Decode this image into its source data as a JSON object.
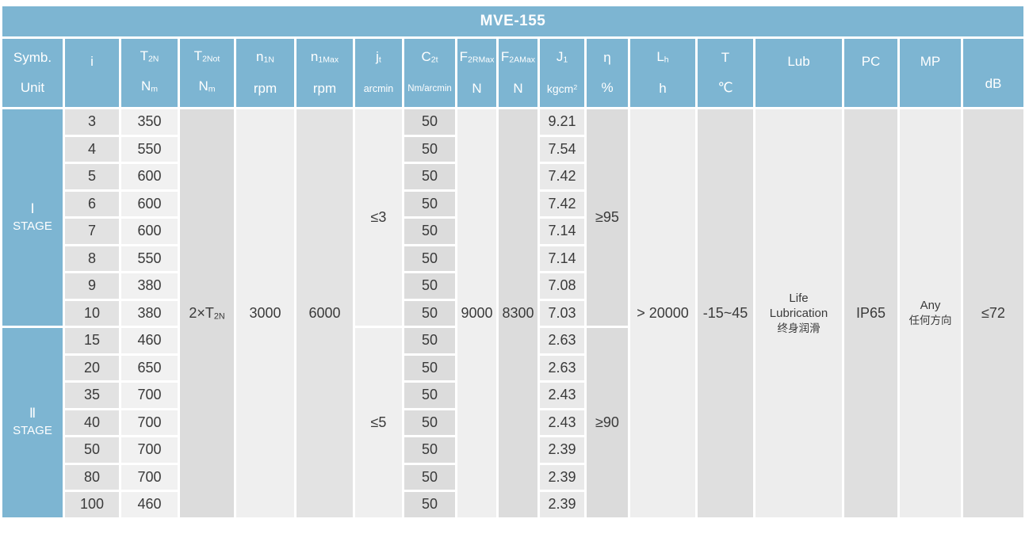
{
  "title": "MVE-155",
  "colors": {
    "header_blue": "#7db5d2",
    "text_dark": "#3a3a3a",
    "grid_line": "#ffffff",
    "columns": {
      "stage": "#7db5d2",
      "i": "#e2e2e2",
      "t2n": "#f1f1f1",
      "t2not": "#dcdcdc",
      "n1n": "#efefef",
      "n1max": "#e3e3e3",
      "jt": "#efefef",
      "c2t": "#dcdcdc",
      "f2rmax": "#efefef",
      "f2amax": "#dcdcdc",
      "j1": "#e9e9e9",
      "eta": "#dbdbdb",
      "lh": "#eeeeee",
      "t": "#dfdfdf",
      "lub": "#ededed",
      "pc": "#dfdfdf",
      "mp": "#ededed",
      "db": "#dfdfdf"
    }
  },
  "header": {
    "corner_top": "Symb.",
    "corner_bottom": "Unit",
    "columns": [
      {
        "key": "i",
        "sym": "i",
        "sym_sub": "",
        "unit": "",
        "unit_sub": "",
        "unit_sup": ""
      },
      {
        "key": "t2n",
        "sym": "T",
        "sym_sub": "2N",
        "unit": "N",
        "unit_sub": "m",
        "unit_sup": ""
      },
      {
        "key": "t2not",
        "sym": "T",
        "sym_sub": "2Not",
        "unit": "N",
        "unit_sub": "m",
        "unit_sup": ""
      },
      {
        "key": "n1n",
        "sym": "n",
        "sym_sub": "1N",
        "unit": "rpm",
        "unit_sub": "",
        "unit_sup": ""
      },
      {
        "key": "n1max",
        "sym": "n",
        "sym_sub": "1Max",
        "unit": "rpm",
        "unit_sub": "",
        "unit_sup": ""
      },
      {
        "key": "jt",
        "sym": "j",
        "sym_sub": "t",
        "unit": "arcmin",
        "unit_sub": "",
        "unit_sup": ""
      },
      {
        "key": "c2t",
        "sym": "C",
        "sym_sub": "2t",
        "unit": "Nm/arcmin",
        "unit_sub": "",
        "unit_sup": ""
      },
      {
        "key": "f2rmax",
        "sym": "F",
        "sym_sub": "2RMax",
        "unit": "N",
        "unit_sub": "",
        "unit_sup": ""
      },
      {
        "key": "f2amax",
        "sym": "F",
        "sym_sub": "2AMax",
        "unit": "N",
        "unit_sub": "",
        "unit_sup": ""
      },
      {
        "key": "j1",
        "sym": "J",
        "sym_sub": "1",
        "unit": "kgcm",
        "unit_sub": "",
        "unit_sup": "2"
      },
      {
        "key": "eta",
        "sym": "η",
        "sym_sub": "",
        "unit": "%",
        "unit_sub": "",
        "unit_sup": ""
      },
      {
        "key": "lh",
        "sym": "L",
        "sym_sub": "h",
        "unit": "h",
        "unit_sub": "",
        "unit_sup": ""
      },
      {
        "key": "t",
        "sym": "T",
        "sym_sub": "",
        "unit": "℃",
        "unit_sub": "",
        "unit_sup": ""
      },
      {
        "key": "lub",
        "sym": "Lub",
        "sym_sub": "",
        "unit": "",
        "unit_sub": "",
        "unit_sup": ""
      },
      {
        "key": "pc",
        "sym": "PC",
        "sym_sub": "",
        "unit": "",
        "unit_sub": "",
        "unit_sup": ""
      },
      {
        "key": "mp",
        "sym": "MP",
        "sym_sub": "",
        "unit": "",
        "unit_sub": "",
        "unit_sup": ""
      },
      {
        "key": "db",
        "sym": "",
        "sym_sub": "",
        "unit": "dB",
        "unit_sub": "",
        "unit_sup": ""
      }
    ]
  },
  "stages": [
    {
      "numeral": "Ⅰ",
      "label": "STAGE",
      "jt": "≤3",
      "eta": "≥95",
      "rows": [
        {
          "i": "3",
          "t2n": "350",
          "c2t": "50",
          "j1": "9.21"
        },
        {
          "i": "4",
          "t2n": "550",
          "c2t": "50",
          "j1": "7.54"
        },
        {
          "i": "5",
          "t2n": "600",
          "c2t": "50",
          "j1": "7.42"
        },
        {
          "i": "6",
          "t2n": "600",
          "c2t": "50",
          "j1": "7.42"
        },
        {
          "i": "7",
          "t2n": "600",
          "c2t": "50",
          "j1": "7.14"
        },
        {
          "i": "8",
          "t2n": "550",
          "c2t": "50",
          "j1": "7.14"
        },
        {
          "i": "9",
          "t2n": "380",
          "c2t": "50",
          "j1": "7.08"
        },
        {
          "i": "10",
          "t2n": "380",
          "c2t": "50",
          "j1": "7.03"
        }
      ]
    },
    {
      "numeral": "Ⅱ",
      "label": "STAGE",
      "jt": "≤5",
      "eta": "≥90",
      "rows": [
        {
          "i": "15",
          "t2n": "460",
          "c2t": "50",
          "j1": "2.63"
        },
        {
          "i": "20",
          "t2n": "650",
          "c2t": "50",
          "j1": "2.63"
        },
        {
          "i": "35",
          "t2n": "700",
          "c2t": "50",
          "j1": "2.43"
        },
        {
          "i": "40",
          "t2n": "700",
          "c2t": "50",
          "j1": "2.43"
        },
        {
          "i": "50",
          "t2n": "700",
          "c2t": "50",
          "j1": "2.39"
        },
        {
          "i": "80",
          "t2n": "700",
          "c2t": "50",
          "j1": "2.39"
        },
        {
          "i": "100",
          "t2n": "460",
          "c2t": "50",
          "j1": "2.39"
        }
      ]
    }
  ],
  "merged": {
    "t2not_pre": "2×T",
    "t2not_sub": "2N",
    "n1n": "3000",
    "n1max": "6000",
    "f2rmax": "9000",
    "f2amax": "8300",
    "lh": "> 20000",
    "t": "-15~45",
    "lub_lines_en": [
      "Life",
      "Lubrication"
    ],
    "lub_line_cn": "终身润滑",
    "pc": "IP65",
    "mp_line_en": "Any",
    "mp_line_cn": "任何方向",
    "db": "≤72"
  }
}
